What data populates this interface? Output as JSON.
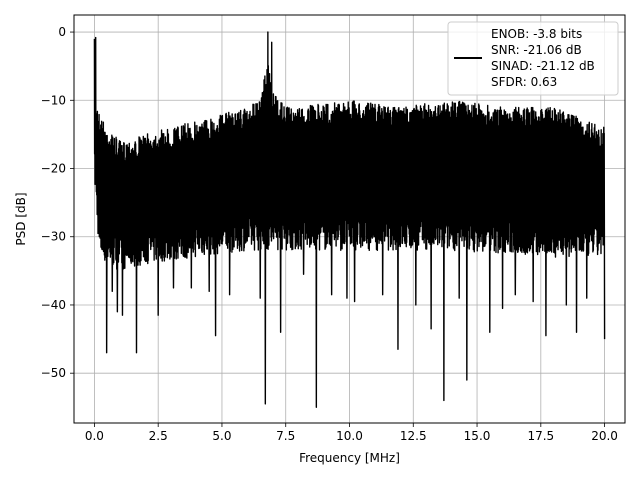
{
  "chart_data": {
    "type": "line",
    "xlabel": "Frequency [MHz]",
    "ylabel": "PSD [dB]",
    "xlim": [
      -0.8,
      20.8
    ],
    "ylim": [
      -57.3,
      2.5
    ],
    "x_ticks": [
      0.0,
      2.5,
      5.0,
      7.5,
      10.0,
      12.5,
      15.0,
      17.5,
      20.0
    ],
    "x_tick_labels": [
      "0.0",
      "2.5",
      "5.0",
      "7.5",
      "10.0",
      "12.5",
      "15.0",
      "17.5",
      "20.0"
    ],
    "y_ticks": [
      0,
      -10,
      -20,
      -30,
      -40,
      -50
    ],
    "y_tick_labels": [
      "0",
      "−10",
      "−20",
      "−30",
      "−40",
      "−50"
    ],
    "grid": true,
    "legend_placement": "top-right",
    "legend_lines": [
      "ENOB: -3.8 bits",
      "SNR: -21.06 dB",
      "SINAD: -21.12 dB",
      "SFDR: 0.63"
    ],
    "series": [
      {
        "color": "#000000",
        "noise_upper_x": [
          0.0,
          0.05,
          0.2,
          0.5,
          1.0,
          2.0,
          3.0,
          4.0,
          5.0,
          6.0,
          6.5,
          6.8,
          7.0,
          7.5,
          8.0,
          10.0,
          12.0,
          14.0,
          16.0,
          18.0,
          20.0
        ],
        "noise_upper_y": [
          -1,
          -9,
          -12,
          -14,
          -16,
          -15,
          -14,
          -13,
          -12,
          -11,
          -10,
          -4,
          -9,
          -11,
          -11,
          -10,
          -11,
          -10,
          -11,
          -11,
          -14
        ],
        "noise_lower_x": [
          0.0,
          0.2,
          0.5,
          1.0,
          2.0,
          4.0,
          6.0,
          8.0,
          10.0,
          14.0,
          18.0,
          20.0
        ],
        "noise_lower_y": [
          -22,
          -33,
          -34,
          -35,
          -34,
          -33,
          -32,
          -32,
          -32,
          -32,
          -33,
          -33
        ],
        "spikes": [
          {
            "x": 0.48,
            "y": -47.0
          },
          {
            "x": 0.7,
            "y": -38.0
          },
          {
            "x": 0.9,
            "y": -41.0
          },
          {
            "x": 1.1,
            "y": -41.5
          },
          {
            "x": 1.65,
            "y": -47.0
          },
          {
            "x": 2.5,
            "y": -41.5
          },
          {
            "x": 3.1,
            "y": -37.5
          },
          {
            "x": 3.8,
            "y": -37.5
          },
          {
            "x": 4.5,
            "y": -38.0
          },
          {
            "x": 4.75,
            "y": -44.5
          },
          {
            "x": 5.3,
            "y": -38.5
          },
          {
            "x": 6.5,
            "y": -39.0
          },
          {
            "x": 6.7,
            "y": -54.5
          },
          {
            "x": 7.3,
            "y": -44.0
          },
          {
            "x": 8.2,
            "y": -35.5
          },
          {
            "x": 8.7,
            "y": -55.0
          },
          {
            "x": 9.3,
            "y": -38.5
          },
          {
            "x": 9.9,
            "y": -39.0
          },
          {
            "x": 10.2,
            "y": -39.5
          },
          {
            "x": 11.3,
            "y": -38.5
          },
          {
            "x": 11.9,
            "y": -46.5
          },
          {
            "x": 12.6,
            "y": -40.0
          },
          {
            "x": 13.2,
            "y": -43.5
          },
          {
            "x": 13.7,
            "y": -54.0
          },
          {
            "x": 14.3,
            "y": -39.0
          },
          {
            "x": 14.6,
            "y": -51.0
          },
          {
            "x": 15.5,
            "y": -44.0
          },
          {
            "x": 16.0,
            "y": -40.5
          },
          {
            "x": 16.5,
            "y": -38.5
          },
          {
            "x": 17.2,
            "y": -39.5
          },
          {
            "x": 17.7,
            "y": -44.5
          },
          {
            "x": 18.5,
            "y": -40.0
          },
          {
            "x": 18.9,
            "y": -44.0
          },
          {
            "x": 19.3,
            "y": -39.0
          },
          {
            "x": 20.0,
            "y": -45.0
          }
        ],
        "peaks": [
          {
            "x": 0.05,
            "y": -0.8
          },
          {
            "x": 6.8,
            "y": 0.0
          },
          {
            "x": 6.95,
            "y": -1.5
          }
        ]
      }
    ]
  }
}
